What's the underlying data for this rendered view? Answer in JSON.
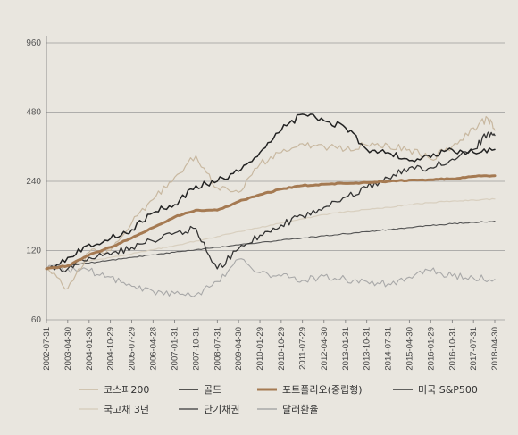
{
  "chart_data": {
    "type": "line",
    "title": "",
    "xlabel": "",
    "ylabel": "",
    "y_scale": "log",
    "ylim": [
      60,
      1100
    ],
    "y_ticks": [
      "960",
      "480",
      "240",
      "120",
      "60"
    ],
    "y_tick_values": [
      960,
      480,
      240,
      120,
      60
    ],
    "x_ticks": [
      "2002-07-31",
      "2003-04-30",
      "2004-01-30",
      "2004-10-29",
      "2005-07-29",
      "2006-04-28",
      "2007-01-31",
      "2007-10-31",
      "2008-07-31",
      "2009-04-30",
      "2010-01-29",
      "2010-10-29",
      "2011-07-29",
      "2012-04-30",
      "2013-01-31",
      "2013-10-31",
      "2014-07-31",
      "2015-04-30",
      "2016-01-29",
      "2016-10-31",
      "2017-07-31",
      "2018-04-30"
    ],
    "x_range": [
      "2002-07-31",
      "2018-04-30"
    ],
    "grid": true,
    "legend_position": "bottom",
    "series": [
      {
        "name": "코스피200",
        "color": "#c8b8a0",
        "width": 1.2,
        "x": [
          "2002-07-31",
          "2003-04-30",
          "2004-01-30",
          "2004-10-29",
          "2005-07-29",
          "2006-04-28",
          "2007-01-31",
          "2007-10-31",
          "2008-07-31",
          "2009-04-30",
          "2010-01-29",
          "2010-10-29",
          "2011-07-29",
          "2012-04-30",
          "2013-01-31",
          "2013-10-31",
          "2014-07-31",
          "2015-04-30",
          "2016-01-29",
          "2016-10-31",
          "2017-07-31",
          "2018-01-31",
          "2018-04-30"
        ],
        "values": [
          100,
          82,
          118,
          120,
          158,
          200,
          250,
          310,
          225,
          215,
          285,
          320,
          350,
          340,
          330,
          345,
          345,
          330,
          300,
          340,
          410,
          450,
          400
        ]
      },
      {
        "name": "골드",
        "color": "#222222",
        "width": 1.5,
        "x": [
          "2002-07-31",
          "2003-04-30",
          "2004-01-30",
          "2004-10-29",
          "2005-07-29",
          "2006-04-28",
          "2007-01-31",
          "2007-10-31",
          "2008-07-31",
          "2009-04-30",
          "2010-01-29",
          "2010-10-29",
          "2011-07-29",
          "2012-04-30",
          "2013-01-31",
          "2013-10-31",
          "2014-07-31",
          "2015-04-30",
          "2016-01-29",
          "2016-10-31",
          "2017-07-31",
          "2018-04-30"
        ],
        "values": [
          100,
          112,
          128,
          135,
          148,
          175,
          190,
          230,
          240,
          265,
          320,
          400,
          470,
          440,
          410,
          330,
          320,
          295,
          305,
          330,
          320,
          330
        ]
      },
      {
        "name": "포트폴리오(중립형)",
        "color": "#a57a52",
        "width": 3,
        "x": [
          "2002-07-31",
          "2003-04-30",
          "2004-01-30",
          "2004-10-29",
          "2005-07-29",
          "2006-04-28",
          "2007-01-31",
          "2007-10-31",
          "2008-07-31",
          "2009-04-30",
          "2010-01-29",
          "2010-10-29",
          "2011-07-29",
          "2012-04-30",
          "2013-01-31",
          "2013-10-31",
          "2014-07-31",
          "2015-04-30",
          "2016-01-29",
          "2016-10-31",
          "2017-07-31",
          "2018-04-30"
        ],
        "values": [
          100,
          103,
          115,
          124,
          136,
          151,
          168,
          180,
          180,
          196,
          210,
          222,
          230,
          233,
          235,
          237,
          240,
          243,
          244,
          246,
          252,
          254
        ]
      },
      {
        "name": "미국 S&P500",
        "color": "#333333",
        "width": 1.3,
        "x": [
          "2002-07-31",
          "2003-04-30",
          "2004-01-30",
          "2004-10-29",
          "2005-07-29",
          "2006-04-28",
          "2007-01-31",
          "2007-10-31",
          "2008-07-31",
          "2009-04-30",
          "2010-01-29",
          "2010-10-29",
          "2011-07-29",
          "2012-04-30",
          "2013-01-31",
          "2013-10-31",
          "2014-07-31",
          "2015-04-30",
          "2016-01-29",
          "2016-10-31",
          "2017-07-31",
          "2018-01-31",
          "2018-04-30"
        ],
        "values": [
          100,
          100,
          112,
          115,
          124,
          132,
          143,
          150,
          100,
          122,
          140,
          155,
          170,
          185,
          205,
          225,
          248,
          275,
          275,
          300,
          330,
          390,
          380
        ]
      },
      {
        "name": "국고채 3년",
        "color": "#d8cfbf",
        "width": 1.2,
        "x": [
          "2002-07-31",
          "2003-04-30",
          "2004-01-30",
          "2004-10-29",
          "2005-07-29",
          "2006-04-28",
          "2007-01-31",
          "2007-10-31",
          "2008-07-31",
          "2009-04-30",
          "2010-01-29",
          "2010-10-29",
          "2011-07-29",
          "2012-04-30",
          "2013-01-31",
          "2013-10-31",
          "2014-07-31",
          "2015-04-30",
          "2016-01-29",
          "2016-10-31",
          "2017-07-31",
          "2018-04-30"
        ],
        "values": [
          100,
          104,
          108,
          112,
          116,
          121,
          126,
          132,
          138,
          145,
          151,
          158,
          165,
          172,
          177,
          181,
          185,
          190,
          194,
          197,
          199,
          201
        ]
      },
      {
        "name": "단기채권",
        "color": "#555555",
        "width": 1.1,
        "x": [
          "2002-07-31",
          "2003-04-30",
          "2004-01-30",
          "2004-10-29",
          "2005-07-29",
          "2006-04-28",
          "2007-01-31",
          "2007-10-31",
          "2008-07-31",
          "2009-04-30",
          "2010-01-29",
          "2010-10-29",
          "2011-07-29",
          "2012-04-30",
          "2013-01-31",
          "2013-10-31",
          "2014-07-31",
          "2015-04-30",
          "2016-01-29",
          "2016-10-31",
          "2017-07-31",
          "2018-04-30"
        ],
        "values": [
          100,
          103,
          106,
          109,
          112,
          115,
          118,
          121,
          124,
          127,
          130,
          133,
          136,
          139,
          142,
          145,
          148,
          151,
          154,
          157,
          159,
          161
        ]
      },
      {
        "name": "달러환율",
        "color": "#a8a8a8",
        "width": 1.1,
        "x": [
          "2002-07-31",
          "2003-04-30",
          "2004-01-30",
          "2004-10-29",
          "2005-07-29",
          "2006-04-28",
          "2007-01-31",
          "2007-10-31",
          "2008-07-31",
          "2009-04-30",
          "2010-01-29",
          "2010-10-29",
          "2011-07-29",
          "2012-04-30",
          "2013-01-31",
          "2013-10-31",
          "2014-07-31",
          "2015-04-30",
          "2016-01-29",
          "2016-10-31",
          "2017-07-31",
          "2018-04-30"
        ],
        "values": [
          100,
          100,
          98,
          92,
          84,
          80,
          78,
          77,
          88,
          110,
          96,
          93,
          89,
          93,
          90,
          88,
          86,
          92,
          98,
          93,
          91,
          90
        ]
      }
    ]
  },
  "background_color": "#e9e6df"
}
